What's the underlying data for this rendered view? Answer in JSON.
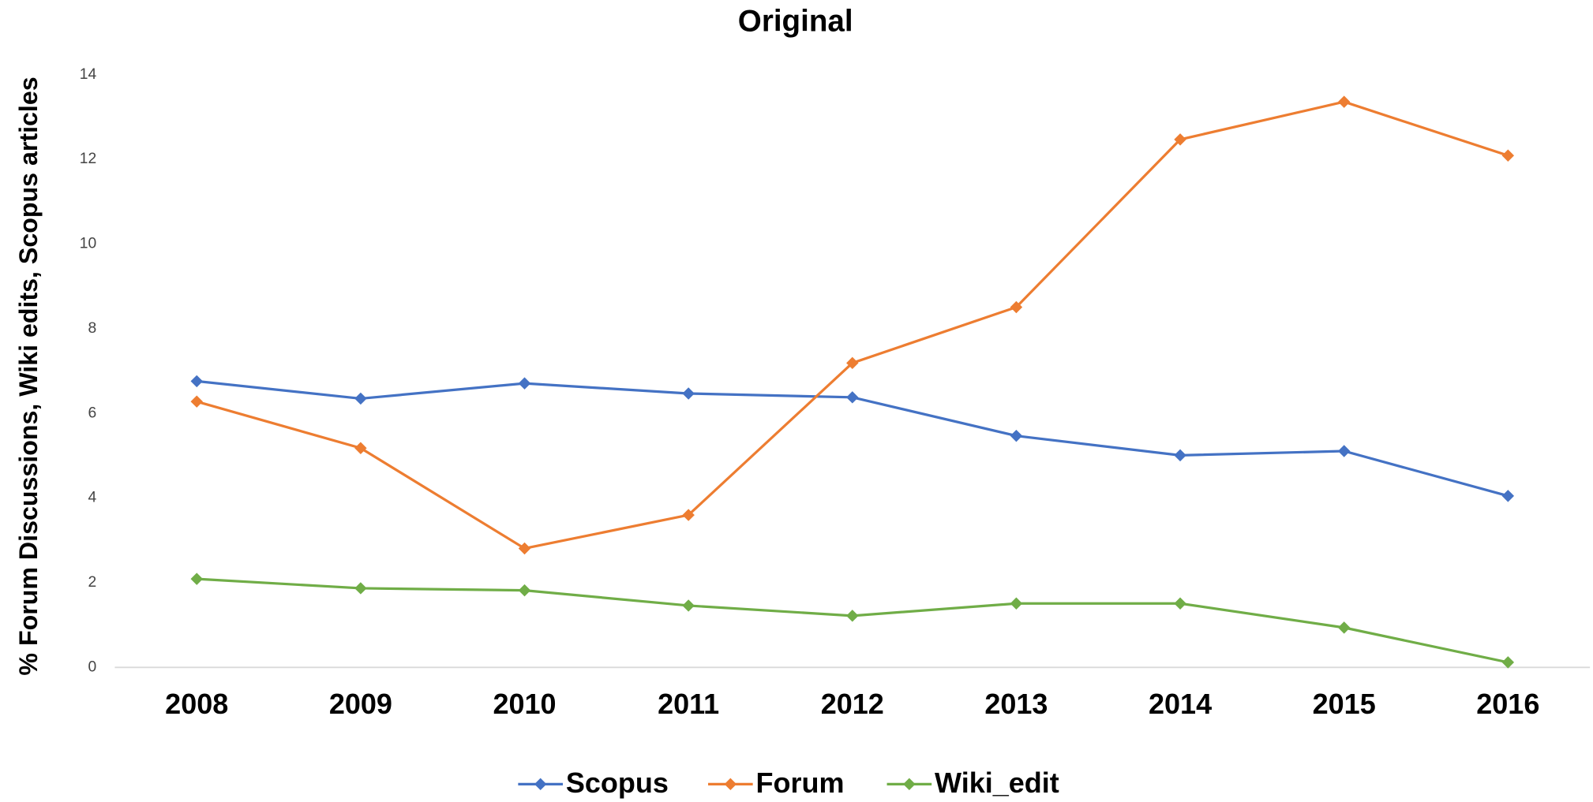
{
  "chart_data": {
    "type": "line",
    "title": "Original",
    "y_label": "% Forum Discussions, Wiki edits, Scopus articles",
    "categories": [
      "2008",
      "2009",
      "2010",
      "2011",
      "2012",
      "2013",
      "2014",
      "2015",
      "2016"
    ],
    "series": [
      {
        "name": "Scopus",
        "color": "#4472c4",
        "values": [
          6.76,
          6.35,
          6.71,
          6.47,
          6.38,
          5.47,
          5.01,
          5.11,
          4.05
        ]
      },
      {
        "name": "Forum",
        "color": "#ed7d31",
        "values": [
          6.28,
          5.18,
          2.81,
          3.6,
          7.19,
          8.51,
          12.47,
          13.36,
          12.09
        ]
      },
      {
        "name": "Wiki_edit",
        "color": "#70ad47",
        "values": [
          2.09,
          1.87,
          1.82,
          1.46,
          1.22,
          1.51,
          1.51,
          0.94,
          0.12
        ]
      }
    ],
    "ylim": [
      0,
      14
    ],
    "yticks": [
      0,
      2,
      4,
      6,
      8,
      10,
      12,
      14
    ],
    "grid": false,
    "legend": "bottom"
  }
}
